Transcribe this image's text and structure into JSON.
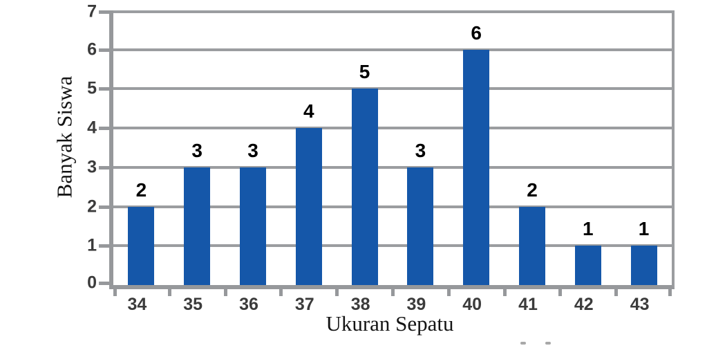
{
  "chart_data": {
    "type": "bar",
    "categories": [
      "34",
      "35",
      "36",
      "37",
      "38",
      "39",
      "40",
      "41",
      "42",
      "43"
    ],
    "values": [
      2,
      3,
      3,
      4,
      5,
      3,
      6,
      2,
      1,
      1
    ],
    "title": "",
    "xlabel": "Ukuran Sepatu",
    "ylabel": "Banyak Siswa",
    "ylim": [
      0,
      7
    ],
    "y_ticks": [
      0,
      1,
      2,
      3,
      4,
      5,
      6,
      7
    ],
    "grid": true,
    "legend": "none",
    "bar_labels_shown": true,
    "colors": {
      "bar": "#1557a9",
      "gridline": "#9b9da0",
      "axis": "#96989b",
      "tick_text": "#3b3b3b",
      "value_text": "#000000",
      "background": "#ffffff"
    }
  }
}
